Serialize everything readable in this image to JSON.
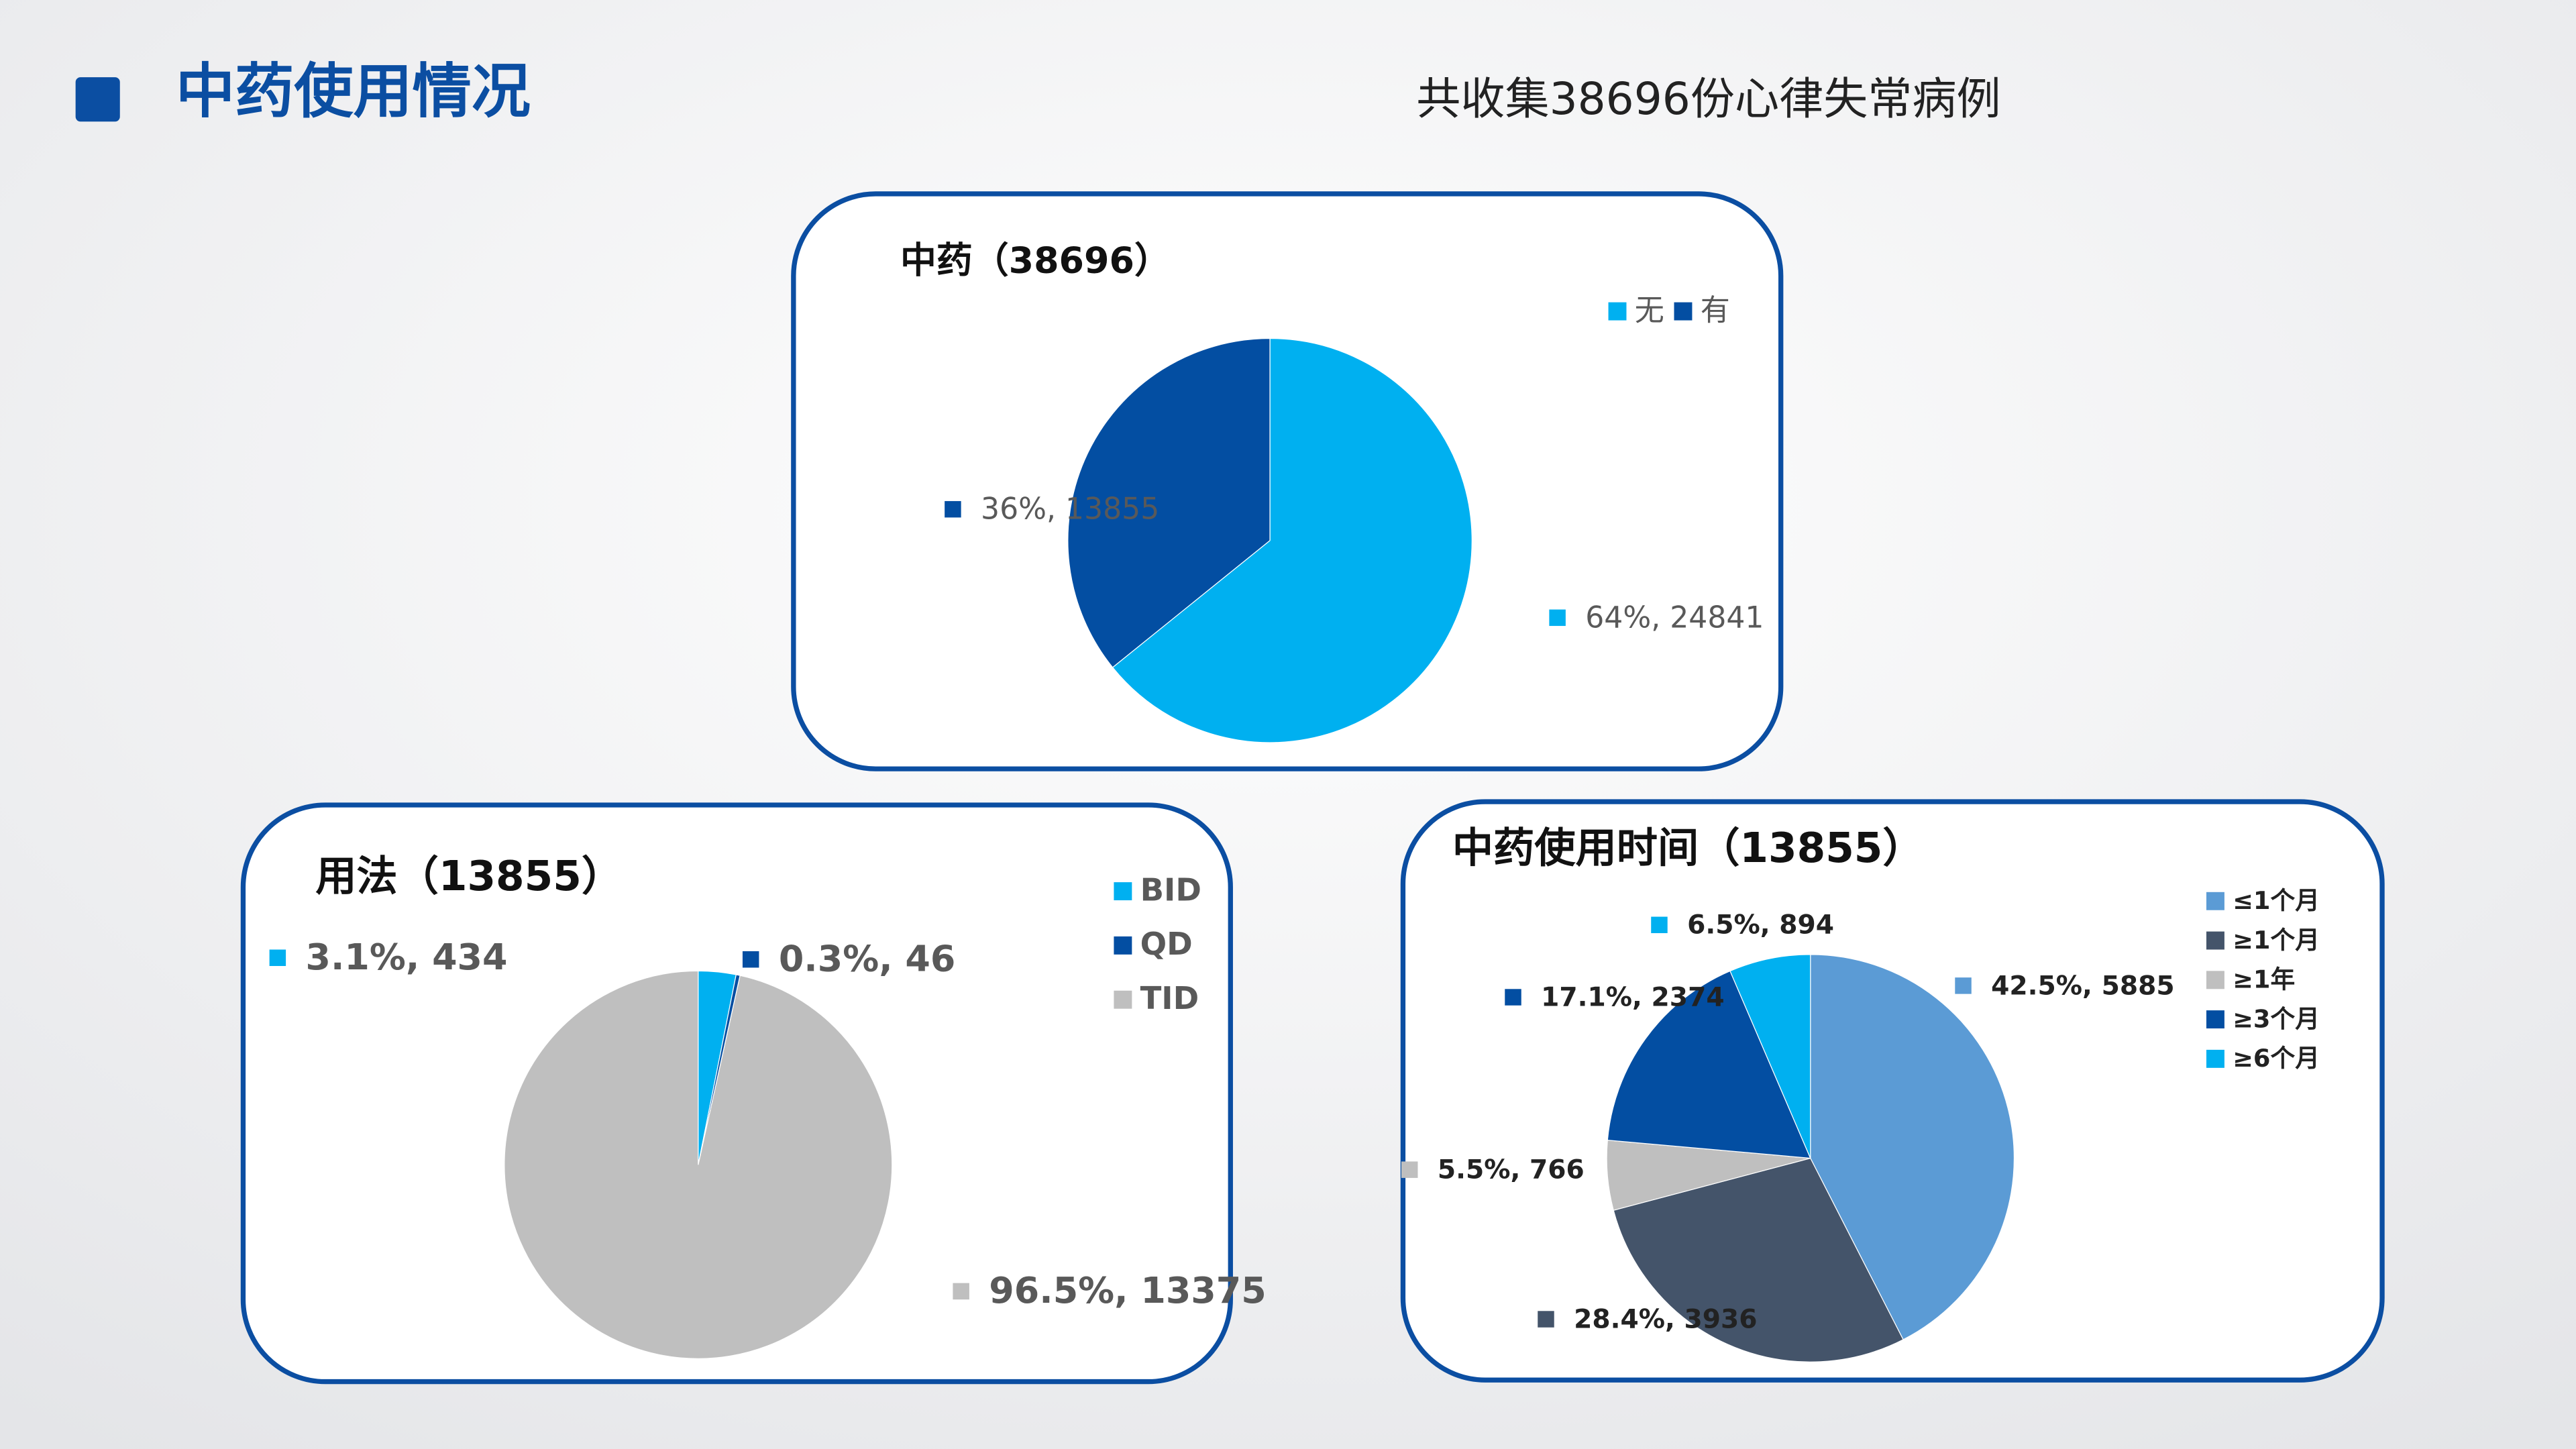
{
  "header": {
    "title": "中药使用情况",
    "subtitle": "共收集38696份心律失常病例"
  },
  "chart_data": [
    {
      "type": "pie",
      "title": "中药（38696）",
      "categories": [
        "无",
        "有"
      ],
      "values": [
        24841,
        13855
      ],
      "value_labels": [
        "64%, 24841",
        "36%, 13855"
      ],
      "colors": [
        "#00b0f0",
        "#034ea2"
      ]
    },
    {
      "type": "pie",
      "title": "用法（13855）",
      "categories": [
        "BID",
        "QD",
        "TID"
      ],
      "values": [
        434,
        46,
        13375
      ],
      "value_labels": [
        "3.1%, 434",
        "0.3%, 46",
        "96.5%, 13375"
      ],
      "colors": [
        "#00b0f0",
        "#034ea2",
        "#bfbfbf"
      ]
    },
    {
      "type": "pie",
      "title": "中药使用时间（13855）",
      "categories": [
        "≤1个月",
        "≥1个月",
        "≥1年",
        "≥3个月",
        "≥6个月"
      ],
      "values": [
        5885,
        3936,
        766,
        2374,
        894
      ],
      "value_labels": [
        "42.5%, 5885",
        "28.4%, 3936",
        "5.5%, 766",
        "17.1%, 2374",
        "6.5%, 894"
      ],
      "colors": [
        "#5b9bd5",
        "#44546a",
        "#bfbfbf",
        "#034ea2",
        "#00b0f0"
      ]
    }
  ]
}
